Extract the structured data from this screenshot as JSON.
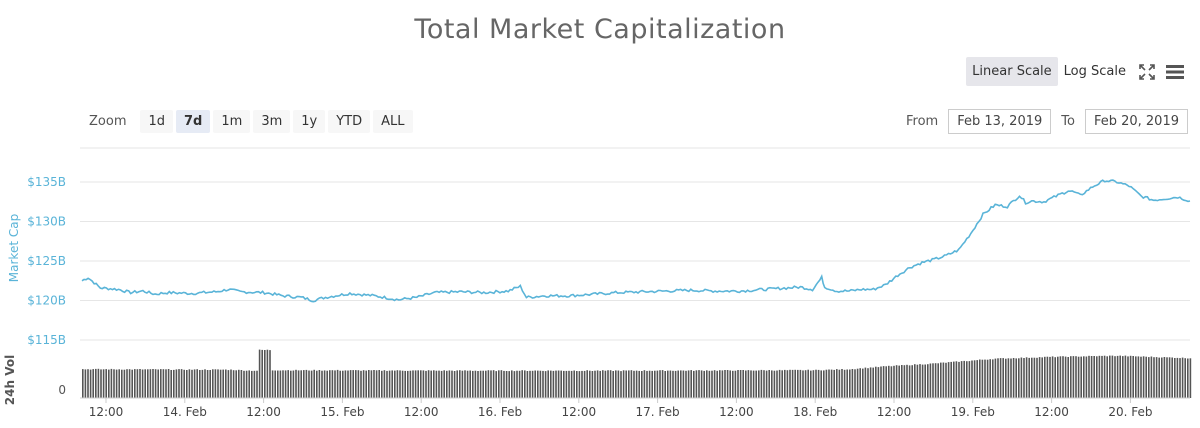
{
  "chart_title": "Total Market Capitalization",
  "scale_buttons": {
    "linear": "Linear Scale",
    "log": "Log Scale"
  },
  "toolbar": {
    "fullscreen_icon": "fullscreen-icon",
    "menu_icon": "menu-icon"
  },
  "zoom": {
    "label": "Zoom",
    "options": [
      "1d",
      "7d",
      "1m",
      "3m",
      "1y",
      "YTD",
      "ALL"
    ],
    "selected": "7d"
  },
  "range": {
    "from_label": "From",
    "from_value": "Feb 13, 2019",
    "to_label": "To",
    "to_value": "Feb 20, 2019"
  },
  "colors": {
    "line": "#5ab4d8",
    "ylabel": "#5ab4d8",
    "volume": "#555555",
    "grid": "#e6e6e6",
    "active_scale": "#e6e6eb"
  },
  "chart_data": {
    "type": "line",
    "x_ticks": [
      "12:00",
      "14. Feb",
      "12:00",
      "15. Feb",
      "12:00",
      "16. Feb",
      "12:00",
      "17. Feb",
      "12:00",
      "18. Feb",
      "12:00",
      "19. Feb",
      "12:00",
      "20. Feb"
    ],
    "y_ticks": [
      "$135B",
      "$130B",
      "$125B",
      "$120B",
      "$115B"
    ],
    "ylabel": "Market Cap",
    "ylim": [
      115,
      135
    ],
    "x_range_hours": [
      0,
      163
    ],
    "series": [
      {
        "name": "Market Cap",
        "points": [
          [
            0,
            122.5
          ],
          [
            1,
            122.9
          ],
          [
            3,
            121.6
          ],
          [
            6,
            121.4
          ],
          [
            8,
            121.0
          ],
          [
            10,
            121.2
          ],
          [
            12,
            120.8
          ],
          [
            14,
            121.0
          ],
          [
            18,
            120.9
          ],
          [
            22,
            121.1
          ],
          [
            24,
            121.4
          ],
          [
            26,
            121.1
          ],
          [
            30,
            121.0
          ],
          [
            33,
            120.6
          ],
          [
            36,
            120.4
          ],
          [
            38,
            120.0
          ],
          [
            40,
            120.4
          ],
          [
            44,
            120.9
          ],
          [
            48,
            120.6
          ],
          [
            52,
            120.1
          ],
          [
            55,
            120.4
          ],
          [
            58,
            121.0
          ],
          [
            62,
            121.1
          ],
          [
            66,
            121.0
          ],
          [
            70,
            121.2
          ],
          [
            72,
            121.8
          ],
          [
            73,
            120.4
          ],
          [
            76,
            120.6
          ],
          [
            80,
            120.6
          ],
          [
            84,
            120.8
          ],
          [
            88,
            121.0
          ],
          [
            92,
            121.1
          ],
          [
            96,
            121.2
          ],
          [
            100,
            121.3
          ],
          [
            104,
            121.2
          ],
          [
            108,
            121.2
          ],
          [
            112,
            121.4
          ],
          [
            116,
            121.6
          ],
          [
            118,
            121.7
          ],
          [
            120,
            121.4
          ],
          [
            121.5,
            122.9
          ],
          [
            122,
            121.7
          ],
          [
            124,
            121.2
          ],
          [
            126,
            121.2
          ],
          [
            128,
            121.4
          ],
          [
            130,
            121.4
          ],
          [
            132,
            122.0
          ],
          [
            134,
            123.2
          ],
          [
            136,
            124.2
          ],
          [
            138,
            124.8
          ],
          [
            140,
            125.2
          ],
          [
            142,
            125.7
          ],
          [
            144,
            126.4
          ],
          [
            146,
            128.5
          ],
          [
            148,
            130.9
          ],
          [
            150,
            132.1
          ],
          [
            152,
            131.9
          ],
          [
            154,
            133.3
          ],
          [
            155,
            132.4
          ],
          [
            156,
            132.6
          ],
          [
            158,
            132.5
          ],
          [
            160,
            133.2
          ],
          [
            162,
            133.9
          ],
          [
            163,
            133.7
          ]
        ]
      }
    ],
    "extra_points": [
      [
        164,
        133.3
      ],
      [
        166,
        134.4
      ],
      [
        168,
        135.2
      ],
      [
        170,
        135.0
      ],
      [
        172,
        134.5
      ],
      [
        174,
        133.2
      ],
      [
        176,
        132.7
      ],
      [
        178,
        132.9
      ],
      [
        180,
        133.1
      ],
      [
        182,
        132.6
      ]
    ],
    "volume": {
      "label": "24h Vol",
      "tick": "0",
      "relative_levels": [
        [
          0,
          0.6
        ],
        [
          24,
          0.59
        ],
        [
          28,
          0.57
        ],
        [
          29,
          1.0
        ],
        [
          31,
          0.58
        ],
        [
          60,
          0.57
        ],
        [
          90,
          0.57
        ],
        [
          120,
          0.58
        ],
        [
          126,
          0.6
        ],
        [
          132,
          0.66
        ],
        [
          140,
          0.72
        ],
        [
          150,
          0.82
        ],
        [
          160,
          0.86
        ],
        [
          170,
          0.88
        ],
        [
          182,
          0.83
        ]
      ]
    }
  }
}
